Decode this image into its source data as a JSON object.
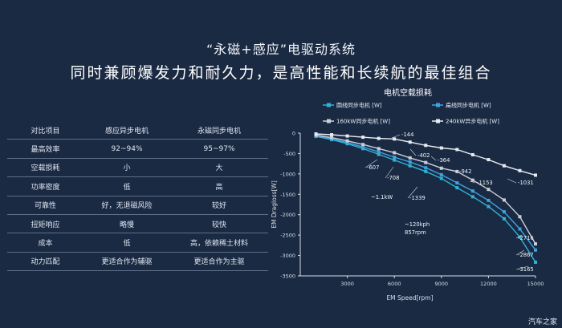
{
  "header": {
    "title": "“永磁+感应”电驱动系统",
    "subtitle": "同时兼顾爆发力和耐久力，是高性能和长续航的最佳组合"
  },
  "comparison_table": {
    "rows": [
      [
        "对比项目",
        "感应异步电机",
        "永磁同步电机"
      ],
      [
        "最高效率",
        "92~94%",
        "95~97%"
      ],
      [
        "空载损耗",
        "小",
        "大"
      ],
      [
        "功率密度",
        "低",
        "高"
      ],
      [
        "可靠性",
        "好，无退磁风险",
        "较好"
      ],
      [
        "扭矩响应",
        "略慢",
        "较快"
      ],
      [
        "成本",
        "低",
        "高，依赖稀土材料"
      ],
      [
        "动力匹配",
        "更适合作为辅驱",
        "更适合作为主驱"
      ]
    ]
  },
  "chart_data": {
    "type": "line",
    "title": "电机空载损耗",
    "xlabel": "EM Speed[rpm]",
    "ylabel": "EM Dragloss[W]",
    "xlim": [
      0,
      15000
    ],
    "ylim": [
      -3500,
      0
    ],
    "xticks": [
      "3000",
      "6000",
      "9000",
      "12000",
      "15000"
    ],
    "yticks": [
      "0",
      "-500",
      "-1000",
      "-1500",
      "-2000",
      "-2500",
      "-3000",
      "-3500"
    ],
    "grid": false,
    "legend_position": "top",
    "series": [
      {
        "name": "圆线同步电机 [W]",
        "color": "#2fb3d6",
        "marker": "square",
        "x": [
          1000,
          2000,
          3000,
          4000,
          5000,
          6000,
          7000,
          8000,
          9000,
          10000,
          11000,
          12000,
          13000,
          14000,
          15000
        ],
        "y": [
          -80,
          -160,
          -260,
          -380,
          -520,
          -660,
          -800,
          -940,
          -1110,
          -1339,
          -1560,
          -1800,
          -2100,
          -2550,
          -3165
        ]
      },
      {
        "name": "扁线同步电机 [W]",
        "color": "#3fa2e0",
        "marker": "square",
        "x": [
          1000,
          2000,
          3000,
          4000,
          5000,
          6000,
          7000,
          8000,
          9000,
          10000,
          11000,
          12000,
          13000,
          14000,
          15000
        ],
        "y": [
          -70,
          -140,
          -230,
          -340,
          -460,
          -590,
          -708,
          -850,
          -1020,
          -1220,
          -1420,
          -1650,
          -1930,
          -2350,
          -2867
        ]
      },
      {
        "name": "160kW同步电机 [W]",
        "color": "#c9cfd9",
        "marker": "square",
        "x": [
          1000,
          2000,
          3000,
          4000,
          5000,
          6000,
          7000,
          8000,
          9000,
          10000,
          11000,
          12000,
          13000,
          14000,
          15000
        ],
        "y": [
          -50,
          -110,
          -190,
          -280,
          -380,
          -480,
          -607,
          -720,
          -860,
          -942,
          -1153,
          -1380,
          -1640,
          -2050,
          -2716
        ]
      },
      {
        "name": "240kW异步电机 [W]",
        "color": "#e8ecf2",
        "marker": "square",
        "x": [
          1000,
          2000,
          3000,
          4000,
          5000,
          6000,
          7000,
          8000,
          9000,
          10000,
          11000,
          12000,
          13000,
          14000,
          15000
        ],
        "y": [
          -20,
          -40,
          -70,
          -100,
          -130,
          -144,
          -220,
          -300,
          -364,
          -402,
          -530,
          -650,
          -800,
          -920,
          -1031
        ]
      }
    ],
    "annotations": [
      "-144",
      "-402",
      "-364",
      "-942",
      "-607",
      "-708",
      "-1153",
      "-1339",
      "-1031",
      "~1.1kW",
      "~120kph",
      "857rpm",
      "-2716",
      "-2867",
      "-3165"
    ]
  },
  "watermark": "汽车之家"
}
